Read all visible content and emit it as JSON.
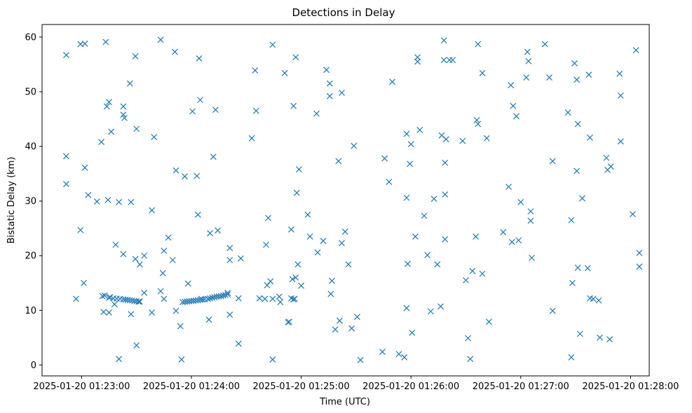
{
  "chart_data": {
    "type": "scatter",
    "title": "Detections in Delay",
    "xlabel": "Time (UTC)",
    "ylabel": "Bistatic Delay (km)",
    "marker": "x",
    "color": "#1f77b4",
    "grid": false,
    "x_unit": "time of day, minutes after 2025-01-20 01:22:00 UTC (tick labels below show actual times)",
    "xlim": [
      0.64,
      6.17
    ],
    "ylim": [
      -2,
      62.3
    ],
    "x_ticks": [
      {
        "value": 1,
        "label": "2025-01-20 01:23:00"
      },
      {
        "value": 2,
        "label": "2025-01-20 01:24:00"
      },
      {
        "value": 3,
        "label": "2025-01-20 01:25:00"
      },
      {
        "value": 4,
        "label": "2025-01-20 01:26:00"
      },
      {
        "value": 5,
        "label": "2025-01-20 01:27:00"
      },
      {
        "value": 6,
        "label": "2025-01-20 01:28:00"
      }
    ],
    "y_ticks": [
      {
        "value": 0,
        "label": "0"
      },
      {
        "value": 10,
        "label": "10"
      },
      {
        "value": 20,
        "label": "20"
      },
      {
        "value": 30,
        "label": "30"
      },
      {
        "value": 40,
        "label": "40"
      },
      {
        "value": 50,
        "label": "50"
      },
      {
        "value": 60,
        "label": "60"
      }
    ],
    "points": [
      [
        0.86,
        56.7
      ],
      [
        0.86,
        38.2
      ],
      [
        0.86,
        33.1
      ],
      [
        0.95,
        12.1
      ],
      [
        0.99,
        24.7
      ],
      [
        0.99,
        58.7
      ],
      [
        1.02,
        15.0
      ],
      [
        1.03,
        58.8
      ],
      [
        1.03,
        36.1
      ],
      [
        1.06,
        31.1
      ],
      [
        1.14,
        29.9
      ],
      [
        1.18,
        40.8
      ],
      [
        1.19,
        12.6
      ],
      [
        1.21,
        12.7
      ],
      [
        1.2,
        9.7
      ],
      [
        1.25,
        12.3
      ],
      [
        1.25,
        9.6
      ],
      [
        1.24,
        30.2
      ],
      [
        1.23,
        47.3
      ],
      [
        1.25,
        48.1
      ],
      [
        1.22,
        59.1
      ],
      [
        1.27,
        42.7
      ],
      [
        1.3,
        11.1
      ],
      [
        1.31,
        22.0
      ],
      [
        1.34,
        29.8
      ],
      [
        1.34,
        1.1
      ],
      [
        1.38,
        47.3
      ],
      [
        1.38,
        20.3
      ],
      [
        1.38,
        45.8
      ],
      [
        1.39,
        45.2
      ],
      [
        1.44,
        51.5
      ],
      [
        1.45,
        29.8
      ],
      [
        1.45,
        9.3
      ],
      [
        1.49,
        56.5
      ],
      [
        1.49,
        19.4
      ],
      [
        1.5,
        43.2
      ],
      [
        1.5,
        3.6
      ],
      [
        1.53,
        18.4
      ],
      [
        1.57,
        13.2
      ],
      [
        1.57,
        20.0
      ],
      [
        1.64,
        28.3
      ],
      [
        1.66,
        41.7
      ],
      [
        1.64,
        9.6
      ],
      [
        1.72,
        59.5
      ],
      [
        1.72,
        13.5
      ],
      [
        1.75,
        12.1
      ],
      [
        1.74,
        16.8
      ],
      [
        1.75,
        20.9
      ],
      [
        1.79,
        23.3
      ],
      [
        1.83,
        19.2
      ],
      [
        1.85,
        57.3
      ],
      [
        1.86,
        35.6
      ],
      [
        1.86,
        9.9
      ],
      [
        1.91,
        1.0
      ],
      [
        1.9,
        7.1
      ],
      [
        1.94,
        34.5
      ],
      [
        1.97,
        14.9
      ],
      [
        2.01,
        46.4
      ],
      [
        2.05,
        34.6
      ],
      [
        2.06,
        27.5
      ],
      [
        2.07,
        56.1
      ],
      [
        2.08,
        48.5
      ],
      [
        2.09,
        12.1
      ],
      [
        2.16,
        8.3
      ],
      [
        2.17,
        24.1
      ],
      [
        2.2,
        38.1
      ],
      [
        2.22,
        46.7
      ],
      [
        2.24,
        24.6
      ],
      [
        2.33,
        13.2
      ],
      [
        2.35,
        19.2
      ],
      [
        2.35,
        21.4
      ],
      [
        2.35,
        9.2
      ],
      [
        2.43,
        12.2
      ],
      [
        2.43,
        3.9
      ],
      [
        2.45,
        19.5
      ],
      [
        2.55,
        41.5
      ],
      [
        2.58,
        53.9
      ],
      [
        2.59,
        46.5
      ],
      [
        2.62,
        12.2
      ],
      [
        2.67,
        12.1
      ],
      [
        2.68,
        22.0
      ],
      [
        2.69,
        14.6
      ],
      [
        2.7,
        26.9
      ],
      [
        2.74,
        12.1
      ],
      [
        2.72,
        15.3
      ],
      [
        2.74,
        58.6
      ],
      [
        2.74,
        1.0
      ],
      [
        2.8,
        12.5
      ],
      [
        2.81,
        11.5
      ],
      [
        2.85,
        53.4
      ],
      [
        2.88,
        7.8
      ],
      [
        2.89,
        7.9
      ],
      [
        2.91,
        24.8
      ],
      [
        2.92,
        15.7
      ],
      [
        2.91,
        12.2
      ],
      [
        2.93,
        12.0
      ],
      [
        2.94,
        12.1
      ],
      [
        2.93,
        47.4
      ],
      [
        2.95,
        16.0
      ],
      [
        2.95,
        56.3
      ],
      [
        2.96,
        31.5
      ],
      [
        2.97,
        18.4
      ],
      [
        2.98,
        35.8
      ],
      [
        3.0,
        14.5
      ],
      [
        3.06,
        27.5
      ],
      [
        3.08,
        23.5
      ],
      [
        3.14,
        46.0
      ],
      [
        3.15,
        20.6
      ],
      [
        3.2,
        22.7
      ],
      [
        3.23,
        54.0
      ],
      [
        3.26,
        51.5
      ],
      [
        3.26,
        49.2
      ],
      [
        3.27,
        13.0
      ],
      [
        3.28,
        15.4
      ],
      [
        3.31,
        6.5
      ],
      [
        3.34,
        37.3
      ],
      [
        3.35,
        8.1
      ],
      [
        3.37,
        49.8
      ],
      [
        3.37,
        22.3
      ],
      [
        3.4,
        24.4
      ],
      [
        3.43,
        18.4
      ],
      [
        3.46,
        6.7
      ],
      [
        3.48,
        40.1
      ],
      [
        3.51,
        8.8
      ],
      [
        3.54,
        0.9
      ],
      [
        3.74,
        2.4
      ],
      [
        3.76,
        37.8
      ],
      [
        3.8,
        33.5
      ],
      [
        3.83,
        51.8
      ],
      [
        3.89,
        2.0
      ],
      [
        3.94,
        1.4
      ],
      [
        3.96,
        30.6
      ],
      [
        3.96,
        42.3
      ],
      [
        3.96,
        10.4
      ],
      [
        3.97,
        18.5
      ],
      [
        3.99,
        36.8
      ],
      [
        4.0,
        40.4
      ],
      [
        4.01,
        5.9
      ],
      [
        4.04,
        23.5
      ],
      [
        4.06,
        56.3
      ],
      [
        4.06,
        55.5
      ],
      [
        4.08,
        43.0
      ],
      [
        4.12,
        27.3
      ],
      [
        4.15,
        20.1
      ],
      [
        4.18,
        9.8
      ],
      [
        4.21,
        30.4
      ],
      [
        4.24,
        18.4
      ],
      [
        4.27,
        10.7
      ],
      [
        4.28,
        42.0
      ],
      [
        4.3,
        55.8
      ],
      [
        4.3,
        59.4
      ],
      [
        4.31,
        37.0
      ],
      [
        4.31,
        31.2
      ],
      [
        4.31,
        23.0
      ],
      [
        4.32,
        41.3
      ],
      [
        4.35,
        55.8
      ],
      [
        4.38,
        55.8
      ],
      [
        4.47,
        41.0
      ],
      [
        4.5,
        15.5
      ],
      [
        4.52,
        4.9
      ],
      [
        4.54,
        1.1
      ],
      [
        4.56,
        17.2
      ],
      [
        4.59,
        23.5
      ],
      [
        4.6,
        44.8
      ],
      [
        4.61,
        58.7
      ],
      [
        4.61,
        44.1
      ],
      [
        4.65,
        53.4
      ],
      [
        4.65,
        16.7
      ],
      [
        4.69,
        41.5
      ],
      [
        4.71,
        7.9
      ],
      [
        4.84,
        24.3
      ],
      [
        4.89,
        32.6
      ],
      [
        4.91,
        51.2
      ],
      [
        4.92,
        22.5
      ],
      [
        4.93,
        47.4
      ],
      [
        4.96,
        45.5
      ],
      [
        4.98,
        22.8
      ],
      [
        5.0,
        29.8
      ],
      [
        5.05,
        52.6
      ],
      [
        5.06,
        57.3
      ],
      [
        5.07,
        55.6
      ],
      [
        5.09,
        28.1
      ],
      [
        5.09,
        26.4
      ],
      [
        5.1,
        19.6
      ],
      [
        5.22,
        58.7
      ],
      [
        5.26,
        52.6
      ],
      [
        5.29,
        37.3
      ],
      [
        5.29,
        9.9
      ],
      [
        5.43,
        46.2
      ],
      [
        5.46,
        26.5
      ],
      [
        5.46,
        1.4
      ],
      [
        5.47,
        15.0
      ],
      [
        5.49,
        55.2
      ],
      [
        5.51,
        52.2
      ],
      [
        5.51,
        35.5
      ],
      [
        5.52,
        17.8
      ],
      [
        5.52,
        44.1
      ],
      [
        5.54,
        5.7
      ],
      [
        5.56,
        30.5
      ],
      [
        5.62,
        53.1
      ],
      [
        5.63,
        41.6
      ],
      [
        5.61,
        17.7
      ],
      [
        5.63,
        12.2
      ],
      [
        5.66,
        12.1
      ],
      [
        5.71,
        11.8
      ],
      [
        5.72,
        5.0
      ],
      [
        5.78,
        37.9
      ],
      [
        5.79,
        35.7
      ],
      [
        5.82,
        36.3
      ],
      [
        5.81,
        4.7
      ],
      [
        5.9,
        53.3
      ],
      [
        5.91,
        49.3
      ],
      [
        5.91,
        40.9
      ],
      [
        6.02,
        27.6
      ],
      [
        6.05,
        57.6
      ],
      [
        6.08,
        20.5
      ],
      [
        6.08,
        18.0
      ],
      [
        1.26,
        12.4
      ],
      [
        1.29,
        12.2
      ],
      [
        1.32,
        12.15
      ],
      [
        1.35,
        12.1
      ],
      [
        1.38,
        12.0
      ],
      [
        1.4,
        11.95
      ],
      [
        1.42,
        11.9
      ],
      [
        1.44,
        11.85
      ],
      [
        1.46,
        11.8
      ],
      [
        1.48,
        11.7
      ],
      [
        1.5,
        11.65
      ],
      [
        1.52,
        11.6
      ],
      [
        1.53,
        11.6
      ],
      [
        1.92,
        11.5
      ],
      [
        1.94,
        11.55
      ],
      [
        1.96,
        11.6
      ],
      [
        1.98,
        11.65
      ],
      [
        2.0,
        11.7
      ],
      [
        2.02,
        11.75
      ],
      [
        2.04,
        11.8
      ],
      [
        2.06,
        11.85
      ],
      [
        2.08,
        11.9
      ],
      [
        2.1,
        11.95
      ],
      [
        2.12,
        12.0
      ],
      [
        2.15,
        12.1
      ],
      [
        2.17,
        12.2
      ],
      [
        2.19,
        12.3
      ],
      [
        2.21,
        12.4
      ],
      [
        2.23,
        12.5
      ],
      [
        2.25,
        12.55
      ],
      [
        2.27,
        12.6
      ],
      [
        2.29,
        12.7
      ],
      [
        2.31,
        12.8
      ],
      [
        2.33,
        12.9
      ]
    ]
  }
}
